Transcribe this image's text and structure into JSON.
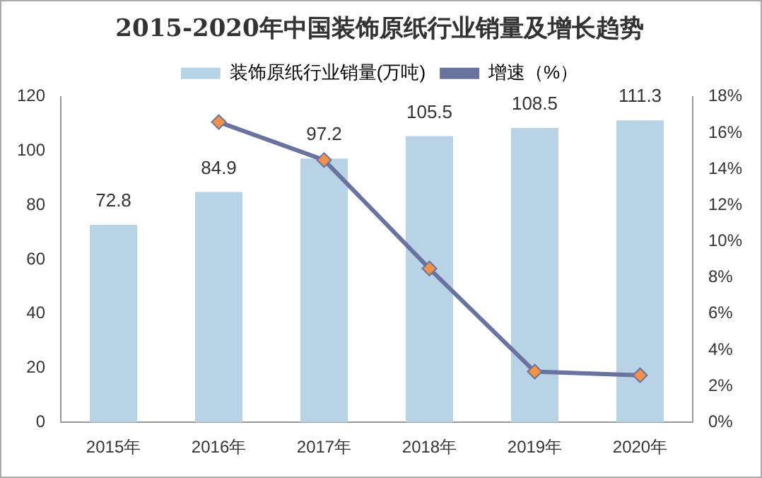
{
  "chart_data": {
    "type": "bar",
    "title": "2015-2020年中国装饰原纸行业销量及增长趋势",
    "categories": [
      "2015年",
      "2016年",
      "2017年",
      "2018年",
      "2019年",
      "2020年"
    ],
    "series": [
      {
        "name": "装饰原纸行业销量(万吨)",
        "color": "#b8d3e5",
        "values": [
          72.8,
          84.9,
          97.2,
          105.5,
          108.5,
          111.3
        ],
        "value_labels": [
          "72.8",
          "84.9",
          "97.2",
          "105.5",
          "108.5",
          "111.3"
        ]
      },
      {
        "name": "增速（%）",
        "type": "line",
        "axis": "y2",
        "color": "#6a73a0",
        "marker": "diamond",
        "values": [
          null,
          16.6,
          14.5,
          8.5,
          2.8,
          2.6
        ]
      }
    ],
    "ylim": [
      0,
      120
    ],
    "yticks": [
      0,
      20,
      40,
      60,
      80,
      100,
      120
    ],
    "y2lim": [
      0,
      18
    ],
    "y2ticks": [
      {
        "value": 0,
        "label": "0%"
      },
      {
        "value": 2,
        "label": "2%"
      },
      {
        "value": 4,
        "label": "4%"
      },
      {
        "value": 6,
        "label": "6%"
      },
      {
        "value": 8,
        "label": "8%"
      },
      {
        "value": 10,
        "label": "10%"
      },
      {
        "value": 12,
        "label": "12%"
      },
      {
        "value": 14,
        "label": "14%"
      },
      {
        "value": 16,
        "label": "16%"
      },
      {
        "value": 18,
        "label": "18%"
      }
    ],
    "grid": false,
    "legend": "top"
  }
}
